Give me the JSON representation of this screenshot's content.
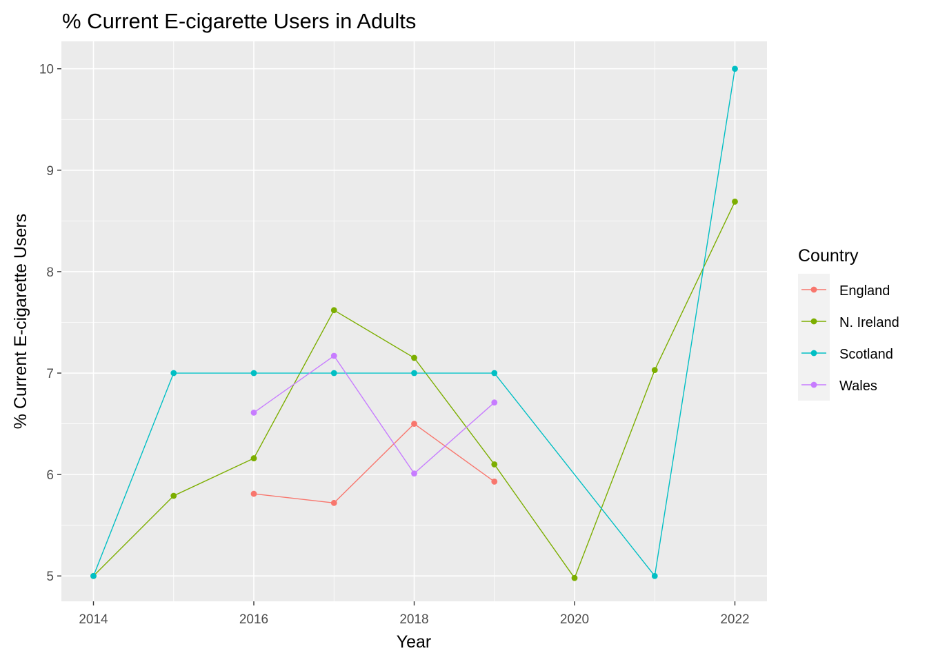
{
  "chart_data": {
    "type": "line",
    "title": "% Current E-cigarette Users in Adults",
    "xlabel": "Year",
    "ylabel": "% Current E-cigarette Users",
    "xlim": [
      2013.6,
      2022.4
    ],
    "ylim": [
      4.75,
      10.27
    ],
    "x_ticks": [
      2014,
      2016,
      2018,
      2020,
      2022
    ],
    "y_ticks": [
      5,
      6,
      7,
      8,
      9,
      10
    ],
    "grid": true,
    "legend": {
      "title": "Country",
      "position": "right"
    },
    "series": [
      {
        "name": "England",
        "color": "#F8766D",
        "points": [
          [
            2016,
            5.81
          ],
          [
            2017,
            5.72
          ],
          [
            2018,
            6.5
          ],
          [
            2019,
            5.93
          ]
        ]
      },
      {
        "name": "N. Ireland",
        "color": "#7CAE00",
        "points": [
          [
            2014,
            5.0
          ],
          [
            2015,
            5.79
          ],
          [
            2016,
            6.16
          ],
          [
            2017,
            7.62
          ],
          [
            2018,
            7.15
          ],
          [
            2019,
            6.1
          ],
          [
            2020,
            4.98
          ],
          [
            2021,
            7.03
          ],
          [
            2022,
            8.69
          ]
        ]
      },
      {
        "name": "Scotland",
        "color": "#00BFC4",
        "points": [
          [
            2014,
            5.0
          ],
          [
            2015,
            7.0
          ],
          [
            2016,
            7.0
          ],
          [
            2017,
            7.0
          ],
          [
            2018,
            7.0
          ],
          [
            2019,
            7.0
          ],
          [
            2021,
            5.0
          ],
          [
            2022,
            10.0
          ]
        ]
      },
      {
        "name": "Wales",
        "color": "#C77CFF",
        "points": [
          [
            2016,
            6.61
          ],
          [
            2017,
            7.17
          ],
          [
            2018,
            6.01
          ],
          [
            2019,
            6.71
          ]
        ]
      }
    ]
  }
}
